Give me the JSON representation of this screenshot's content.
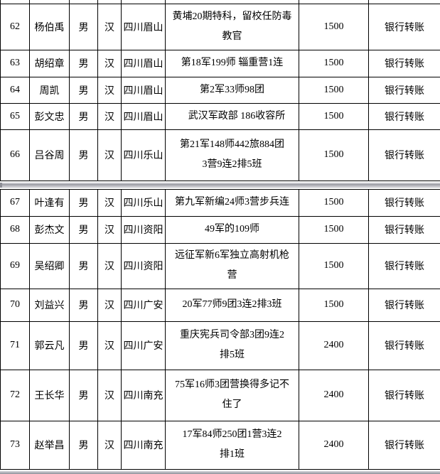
{
  "colors": {
    "border": "#000000",
    "text": "#000000",
    "background": "#ffffff",
    "band_light": "#c6c6cc",
    "band_dark": "#9fa0a8"
  },
  "table": {
    "segments": [
      {
        "rows": [
          {
            "no": "62",
            "name": "杨伯禹",
            "gender": "男",
            "ethnicity": "汉",
            "origin": "四川眉山",
            "unit": "黄埔20期特科，留校任防毒\n教官",
            "amount": "1500",
            "payment": "银行转账"
          },
          {
            "no": "63",
            "name": "胡绍章",
            "gender": "男",
            "ethnicity": "汉",
            "origin": "四川眉山",
            "unit": "第18军199师 辎重营1连",
            "amount": "1500",
            "payment": "银行转账"
          },
          {
            "no": "64",
            "name": "周凯",
            "gender": "男",
            "ethnicity": "汉",
            "origin": "四川眉山",
            "unit": "第2军33师98团",
            "amount": "1500",
            "payment": "银行转账"
          },
          {
            "no": "65",
            "name": "彭文忠",
            "gender": "男",
            "ethnicity": "汉",
            "origin": "四川眉山",
            "unit": "武汉军政部 186收容所",
            "amount": "1500",
            "payment": "银行转账"
          },
          {
            "no": "66",
            "name": "吕谷周",
            "gender": "男",
            "ethnicity": "汉",
            "origin": "四川乐山",
            "unit": "第21军148师442旅884团\n3营9连2排5班",
            "amount": "1500",
            "payment": "银行转账"
          }
        ]
      },
      {
        "rows": [
          {
            "no": "67",
            "name": "叶逢有",
            "gender": "男",
            "ethnicity": "汉",
            "origin": "四川乐山",
            "unit": "第九军新编24师3营步兵连",
            "amount": "1500",
            "payment": "银行转账"
          },
          {
            "no": "68",
            "name": "彭杰文",
            "gender": "男",
            "ethnicity": "汉",
            "origin": "四川资阳",
            "unit": "49军的109师",
            "amount": "1500",
            "payment": "银行转账"
          },
          {
            "no": "69",
            "name": "吴绍卿",
            "gender": "男",
            "ethnicity": "汉",
            "origin": "四川资阳",
            "unit": "远征军新6军独立高射机枪\n营",
            "amount": "1500",
            "payment": "银行转账"
          },
          {
            "no": "70",
            "name": "刘益兴",
            "gender": "男",
            "ethnicity": "汉",
            "origin": "四川广安",
            "unit": "20军77师9团3连2排3班",
            "amount": "1500",
            "payment": "银行转账"
          },
          {
            "no": "71",
            "name": "郭云凡",
            "gender": "男",
            "ethnicity": "汉",
            "origin": "四川广安",
            "unit": "重庆宪兵司令部3团9连2\n排5班",
            "amount": "2400",
            "payment": "银行转账"
          },
          {
            "no": "72",
            "name": "王长华",
            "gender": "男",
            "ethnicity": "汉",
            "origin": "四川南充",
            "unit": "75军16师3团营换得多记不\n住了",
            "amount": "2400",
            "payment": "银行转账"
          },
          {
            "no": "73",
            "name": "赵举昌",
            "gender": "男",
            "ethnicity": "汉",
            "origin": "四川南充",
            "unit": "17军84师250团1营3连2\n排1班",
            "amount": "2400",
            "payment": "银行转账"
          }
        ]
      }
    ]
  }
}
